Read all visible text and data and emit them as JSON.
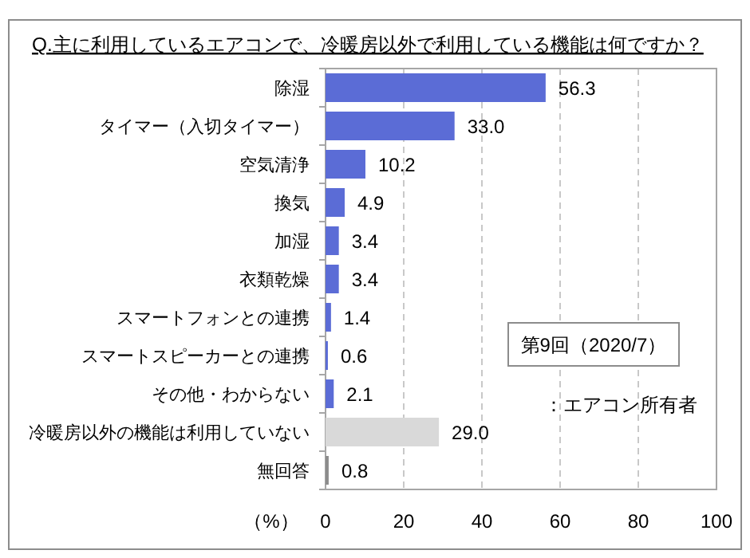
{
  "chart_data": {
    "type": "bar",
    "orientation": "horizontal",
    "title": "Q.主に利用しているエアコンで、冷暖房以外で利用している機能は何ですか？",
    "xlabel": "（%）",
    "categories": [
      "除湿",
      "タイマー（入切タイマー）",
      "空気清浄",
      "換気",
      "加湿",
      "衣類乾燥",
      "スマートフォンとの連携",
      "スマートスピーカーとの連携",
      "その他・わからない",
      "冷暖房以外の機能は利用していない",
      "無回答"
    ],
    "values": [
      56.3,
      33.0,
      10.2,
      4.9,
      3.4,
      3.4,
      1.4,
      0.6,
      2.1,
      29.0,
      0.8
    ],
    "colors": [
      "#5b6cd6",
      "#5b6cd6",
      "#5b6cd6",
      "#5b6cd6",
      "#5b6cd6",
      "#5b6cd6",
      "#5b6cd6",
      "#5b6cd6",
      "#5b6cd6",
      "#d9d9d9",
      "#8c8c8c"
    ],
    "value_labels": [
      "56.3",
      "33.0",
      "10.2",
      "4.9",
      "3.4",
      "3.4",
      "1.4",
      "0.6",
      "2.1",
      "29.0",
      "0.8"
    ],
    "xlim": [
      0,
      100
    ],
    "xticks": [
      0,
      20,
      40,
      60,
      80,
      100
    ],
    "grid": "x",
    "annotations": [
      "第9回（2020/7）",
      "：エアコン所有者"
    ]
  }
}
